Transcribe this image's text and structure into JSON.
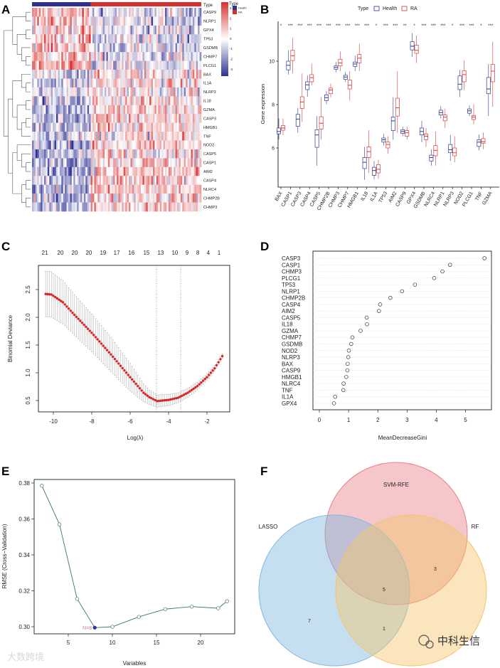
{
  "panels": {
    "A": "A",
    "B": "B",
    "C": "C",
    "D": "D",
    "E": "E",
    "F": "F"
  },
  "chart_data": [
    {
      "panel": "A",
      "type": "heatmap",
      "annotation_label": "Type",
      "legend_title": "Type",
      "groups": [
        {
          "name": "Health",
          "color": "#2e3192"
        },
        {
          "name": "RA",
          "color": "#d7302f"
        }
      ],
      "health_fraction": 0.35,
      "color_scale": {
        "low": "#2e3192",
        "mid": "#ffffff",
        "high": "#d7302f",
        "ticks": [
          "3",
          "2",
          "1",
          "0",
          "-1",
          "-2",
          "-3"
        ]
      },
      "rows": [
        "CASP9",
        "NLRP1",
        "GPX4",
        "TP53",
        "GSDMB",
        "CHMP7",
        "PLCG1",
        "BAX",
        "IL1A",
        "NLRP3",
        "IL18",
        "GZMA",
        "CASP3",
        "HMGB1",
        "TNF",
        "NOD2",
        "CASP5",
        "CASP1",
        "AIM2",
        "CASP4",
        "NLRC4",
        "CHMP2B",
        "CHMP3"
      ],
      "health_mean_z": [
        0.8,
        0.9,
        0.7,
        0.8,
        0.9,
        0.8,
        0.9,
        -0.5,
        -0.6,
        -0.5,
        -0.9,
        -0.9,
        -1.0,
        -0.9,
        -0.4,
        -0.9,
        -1.0,
        -1.1,
        -1.1,
        -1.0,
        -1.0,
        -1.0,
        -0.9
      ]
    },
    {
      "panel": "B",
      "type": "box",
      "ylabel": "Gene expression",
      "yticks": [
        "6",
        "8",
        "10"
      ],
      "ylim": [
        4.2,
        11.9
      ],
      "legend_title": "Type",
      "series_names": [
        "Health",
        "RA"
      ],
      "colors": {
        "Health": "#2e3a87",
        "RA": "#d33a3a"
      },
      "genes": [
        {
          "name": "BAX",
          "sig": "*",
          "Health": [
            6.38,
            6.65,
            6.76,
            6.92,
            7.36
          ],
          "RA": [
            6.6,
            6.82,
            6.92,
            7.03,
            7.36
          ]
        },
        {
          "name": "CASP1",
          "sig": "***",
          "Health": [
            9.38,
            9.6,
            9.81,
            10.0,
            10.5
          ],
          "RA": [
            9.43,
            10.03,
            10.25,
            10.5,
            11.07
          ]
        },
        {
          "name": "CASP3",
          "sig": "***",
          "Health": [
            6.7,
            7.0,
            7.33,
            7.55,
            7.85
          ],
          "RA": [
            7.2,
            7.82,
            8.12,
            8.36,
            9.43
          ]
        },
        {
          "name": "CASP4",
          "sig": "***",
          "Health": [
            8.36,
            8.69,
            8.91,
            9.05,
            9.35
          ],
          "RA": [
            8.89,
            9.05,
            9.24,
            9.38,
            9.89
          ]
        },
        {
          "name": "CASP5",
          "sig": "***",
          "Health": [
            5.18,
            6.03,
            6.6,
            6.84,
            7.47
          ],
          "RA": [
            6.38,
            6.87,
            7.14,
            7.44,
            8.34
          ]
        },
        {
          "name": "CHMP2B",
          "sig": "***",
          "Health": [
            8.02,
            8.18,
            8.32,
            8.45,
            8.62
          ],
          "RA": [
            8.34,
            8.5,
            8.67,
            8.76,
            8.97
          ]
        },
        {
          "name": "CHMP3",
          "sig": "***",
          "Health": [
            9.49,
            9.63,
            9.71,
            9.78,
            9.96
          ],
          "RA": [
            9.54,
            9.78,
            9.92,
            10.09,
            10.44
          ]
        },
        {
          "name": "CHMP7",
          "sig": "***",
          "Health": [
            9.05,
            9.16,
            9.27,
            9.35,
            9.49
          ],
          "RA": [
            8.18,
            8.72,
            8.89,
            9.13,
            9.54
          ]
        },
        {
          "name": "HMGB1",
          "sig": "***",
          "Health": [
            9.54,
            9.76,
            9.87,
            9.96,
            10.25
          ],
          "RA": [
            9.54,
            9.92,
            10.14,
            10.31,
            10.8
          ]
        },
        {
          "name": "IL18",
          "sig": "***",
          "Health": [
            4.53,
            5.05,
            5.34,
            5.56,
            6.05
          ],
          "RA": [
            4.85,
            5.56,
            5.83,
            6.05,
            6.82
          ]
        },
        {
          "name": "IL1A",
          "sig": "*",
          "Health": [
            4.55,
            4.74,
            4.96,
            5.11,
            5.4
          ],
          "RA": [
            4.58,
            4.85,
            5.02,
            5.23,
            5.45
          ]
        },
        {
          "name": "TP53",
          "sig": "***",
          "Health": [
            6.11,
            6.27,
            6.38,
            6.46,
            6.65
          ],
          "RA": [
            5.73,
            6.0,
            6.16,
            6.27,
            6.54
          ]
        },
        {
          "name": "AIM2",
          "sig": "***",
          "Health": [
            6.38,
            6.8,
            7.25,
            7.42,
            8.34
          ],
          "RA": [
            6.7,
            7.47,
            7.85,
            8.29,
            9.54
          ]
        },
        {
          "name": "CASP9",
          "sig": "**",
          "Health": [
            6.54,
            6.67,
            6.76,
            6.84,
            6.98
          ],
          "RA": [
            6.38,
            6.54,
            6.7,
            6.8,
            6.98
          ]
        },
        {
          "name": "GPX4",
          "sig": "*",
          "Health": [
            10.2,
            10.52,
            10.69,
            10.9,
            11.29
          ],
          "RA": [
            9.92,
            10.36,
            10.5,
            10.74,
            11.18
          ]
        },
        {
          "name": "GSDMB",
          "sig": "***",
          "Health": [
            6.27,
            6.6,
            6.76,
            6.92,
            7.25
          ],
          "RA": [
            6.05,
            6.38,
            6.54,
            6.65,
            6.92
          ]
        },
        {
          "name": "NLRC4",
          "sig": "***",
          "Health": [
            5.18,
            5.4,
            5.56,
            5.67,
            5.94
          ],
          "RA": [
            5.18,
            5.64,
            5.89,
            6.11,
            6.76
          ]
        },
        {
          "name": "NLRP1",
          "sig": "***",
          "Health": [
            7.36,
            7.52,
            7.63,
            7.74,
            7.93
          ],
          "RA": [
            6.92,
            7.25,
            7.42,
            7.52,
            7.8
          ]
        },
        {
          "name": "NLRP3",
          "sig": "*",
          "Health": [
            5.4,
            5.78,
            5.92,
            6.16,
            6.6
          ],
          "RA": [
            5.34,
            5.64,
            5.78,
            6.0,
            6.54
          ]
        },
        {
          "name": "NOD2",
          "sig": "***",
          "Health": [
            8.34,
            8.69,
            8.94,
            9.32,
            9.6
          ],
          "RA": [
            8.67,
            9.05,
            9.38,
            9.56,
            10.03
          ]
        },
        {
          "name": "PLCG1",
          "sig": "***",
          "Health": [
            7.47,
            7.6,
            7.71,
            7.8,
            7.96
          ],
          "RA": [
            7.09,
            7.31,
            7.42,
            7.5,
            8.02
          ]
        },
        {
          "name": "TNF",
          "sig": "*",
          "Health": [
            5.89,
            6.07,
            6.27,
            6.38,
            6.62
          ],
          "RA": [
            5.94,
            6.22,
            6.29,
            6.43,
            6.71
          ]
        },
        {
          "name": "GZMA",
          "sig": "***",
          "Health": [
            7.47,
            8.5,
            8.72,
            9.25,
            9.87
          ],
          "RA": [
            7.9,
            9.05,
            9.54,
            9.85,
            10.9
          ]
        }
      ]
    },
    {
      "panel": "C",
      "type": "line",
      "xlabel": "Log(λ)",
      "ylabel": "Binomial Deviance",
      "xticks": [
        "-10",
        "-8",
        "-6",
        "-4",
        "-2"
      ],
      "yticks": [
        "0.5",
        "1.0",
        "1.5",
        "2.0",
        "2.5"
      ],
      "xlim": [
        -10.78,
        -0.82
      ],
      "ylim": [
        0.3,
        2.94
      ],
      "top_labels": [
        "21",
        "20",
        "20",
        "20",
        "19",
        "17",
        "16",
        "15",
        "13",
        "10",
        "9",
        "8",
        "4",
        "1"
      ],
      "top_label_x": [
        -10.44,
        -9.63,
        -8.89,
        -8.15,
        -7.41,
        -6.7,
        -5.93,
        -5.15,
        -4.41,
        -3.67,
        -3.04,
        -2.48,
        -1.93,
        -1.37
      ],
      "vlines": [
        -4.63,
        -3.37
      ],
      "curve_x": [
        -10.4,
        -10.1,
        -9.5,
        -9,
        -8,
        -7,
        -6,
        -5.3,
        -5,
        -4.6,
        -4,
        -3.5,
        -3,
        -2.5,
        -2,
        -1.6,
        -1.2
      ],
      "curve_y": [
        2.42,
        2.41,
        2.27,
        2.08,
        1.72,
        1.33,
        0.92,
        0.64,
        0.56,
        0.49,
        0.51,
        0.55,
        0.64,
        0.76,
        0.92,
        1.08,
        1.3
      ],
      "curve_se": [
        0.41,
        0.41,
        0.39,
        0.37,
        0.34,
        0.31,
        0.25,
        0.16,
        0.13,
        0.11,
        0.1,
        0.09,
        0.08,
        0.07,
        0.06,
        0.05,
        0.04
      ],
      "point_color": "#d62728"
    },
    {
      "panel": "D",
      "type": "scatter",
      "xlabel": "MeanDecreaseGini",
      "xticks": [
        "0",
        "1",
        "2",
        "3",
        "4",
        "5"
      ],
      "xlim": [
        -0.22,
        5.9
      ],
      "features": [
        "CASP3",
        "CASP1",
        "CHMP3",
        "PLCG1",
        "TP53",
        "NLRP1",
        "CHMP2B",
        "CASP4",
        "AIM2",
        "CASP5",
        "IL18",
        "GZMA",
        "CHMP7",
        "GSDMB",
        "NOD2",
        "NLRP3",
        "BAX",
        "CASP9",
        "HMGB1",
        "NLRC4",
        "TNF",
        "IL1A",
        "GPX4"
      ],
      "values": [
        5.65,
        4.47,
        4.21,
        3.93,
        3.27,
        2.83,
        2.43,
        2.08,
        2.04,
        1.62,
        1.63,
        1.41,
        1.13,
        1.09,
        1.01,
        0.99,
        0.97,
        0.96,
        0.92,
        0.83,
        0.82,
        0.54,
        0.5
      ]
    },
    {
      "panel": "E",
      "type": "line",
      "xlabel": "Variables",
      "ylabel": "RMSE (Cross−Validation)",
      "xticks": [
        "5",
        "10",
        "15",
        "20"
      ],
      "yticks": [
        "0.30",
        "0.32",
        "0.34",
        "0.36",
        "0.38"
      ],
      "xlim": [
        1.1,
        23.8
      ],
      "ylim": [
        0.2961,
        0.382
      ],
      "x": [
        2,
        4,
        6,
        8,
        10,
        13,
        16,
        19,
        22,
        23
      ],
      "y": [
        0.3785,
        0.357,
        0.3155,
        0.2995,
        0.3,
        0.3055,
        0.3098,
        0.3112,
        0.3103,
        0.3142
      ],
      "best_label": "N=8",
      "best_x": 8,
      "line_color": "#3d7a52",
      "best_color": "#2b3a8a",
      "best_label_color": "#d47a9a"
    },
    {
      "panel": "F",
      "type": "venn",
      "sets": [
        {
          "name": "SVM-RFE",
          "color": "#e8808a"
        },
        {
          "name": "LASSO",
          "color": "#7fb8e0"
        },
        {
          "name": "RF",
          "color": "#f3c56a"
        }
      ],
      "regions": {
        "svm_rf": "3",
        "all": "5",
        "lasso_only": "7",
        "lasso_rf": "1"
      }
    }
  ],
  "watermarks": {
    "left": "大数跨境",
    "right": "中科生信"
  }
}
